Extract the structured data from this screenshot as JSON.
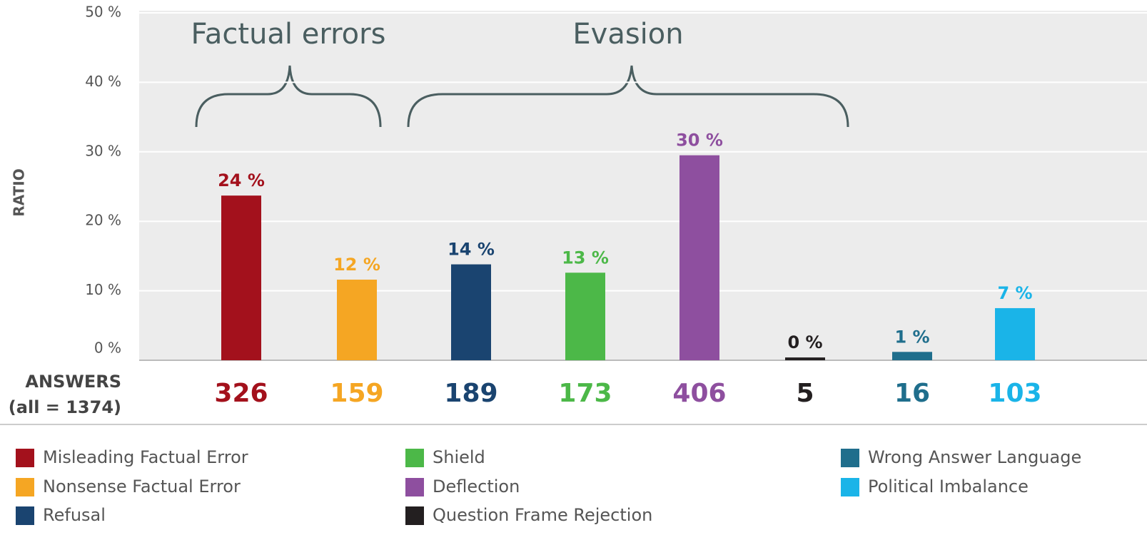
{
  "chart_data": {
    "type": "bar",
    "y_label": "RATIO",
    "annotations": [
      "Factual errors",
      "Evasion"
    ],
    "categories": [
      "Misleading Factual Error",
      "Nonsense Factual Error",
      "Refusal",
      "Shield",
      "Deflection",
      "Question Frame Rejection",
      "Wrong Answer Language",
      "Political Imbalance"
    ],
    "values": [
      23.7,
      11.6,
      13.8,
      12.6,
      29.5,
      0.4,
      1.2,
      7.5
    ],
    "value_labels": [
      "24 %",
      "12 %",
      "14 %",
      "13 %",
      "30 %",
      "0 %",
      "1 %",
      "7 %"
    ],
    "colors": [
      "#a3111c",
      "#f5a623",
      "#1a4470",
      "#4cb848",
      "#8e4f9f",
      "#231f20",
      "#1f6e8c",
      "#1ab4e8"
    ],
    "answers_label": [
      "ANSWERS",
      "(all = 1374)"
    ],
    "answers": [
      326,
      159,
      189,
      173,
      406,
      5,
      16,
      103
    ],
    "ylim": [
      0,
      50
    ],
    "yticks": [
      {
        "value": 0,
        "label": "0 %"
      },
      {
        "value": 10,
        "label": "10 %"
      },
      {
        "value": 20,
        "label": "20 %"
      },
      {
        "value": 30,
        "label": "30 %"
      },
      {
        "value": 40,
        "label": "40 %"
      },
      {
        "value": 50,
        "label": "50 %"
      }
    ],
    "grid": true
  }
}
